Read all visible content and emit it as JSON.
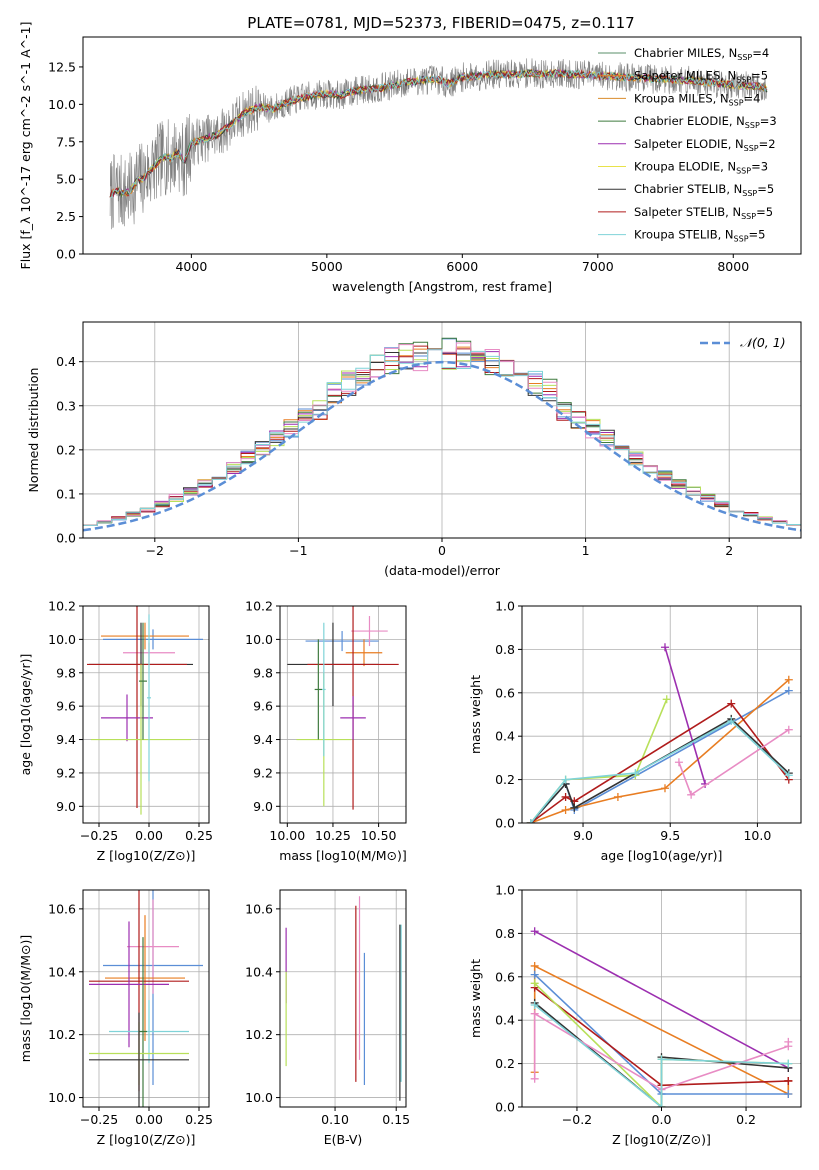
{
  "figure": {
    "title": "PLATE=0781, MJD=52373, FIBERID=0475, z=0.117"
  },
  "models": [
    {
      "name": "Chabrier MILES",
      "nssp": "4",
      "color": "#5a8f6a"
    },
    {
      "name": "Salpeter MILES",
      "nssp": "5",
      "color": "#e87d22"
    },
    {
      "name": "Kroupa MILES",
      "nssp": "4",
      "color": "#d98c2b"
    },
    {
      "name": "Chabrier ELODIE",
      "nssp": "3",
      "color": "#3f7a3f"
    },
    {
      "name": "Salpeter ELODIE",
      "nssp": "2",
      "color": "#9c2fb0"
    },
    {
      "name": "Kroupa ELODIE",
      "nssp": "3",
      "color": "#e8e24a"
    },
    {
      "name": "Chabrier STELIB",
      "nssp": "5",
      "color": "#333333"
    },
    {
      "name": "Salpeter STELIB",
      "nssp": "5",
      "color": "#b01c1c"
    },
    {
      "name": "Kroupa STELIB",
      "nssp": "5",
      "color": "#7fd3d8"
    }
  ],
  "chart_data": [
    {
      "id": "spectrum",
      "type": "line",
      "xlabel": "wavelength [Angstrom, rest frame]",
      "ylabel": "Flux [f_λ 10^-17 erg cm^-2 s^-1 A^-1]",
      "xlim": [
        3200,
        8500
      ],
      "ylim": [
        0,
        14.5
      ],
      "xticks": [
        4000,
        5000,
        6000,
        7000,
        8000
      ],
      "yticks": [
        0.0,
        2.5,
        5.0,
        7.5,
        10.0,
        12.5
      ],
      "legend": "right",
      "data_color": "#808080",
      "data_points": [
        [
          3400,
          3.9
        ],
        [
          3450,
          4.3
        ],
        [
          3500,
          4.0
        ],
        [
          3550,
          4.2
        ],
        [
          3600,
          4.9
        ],
        [
          3650,
          5.1
        ],
        [
          3700,
          5.6
        ],
        [
          3750,
          6.1
        ],
        [
          3800,
          6.5
        ],
        [
          3850,
          6.4
        ],
        [
          3900,
          6.8
        ],
        [
          3950,
          6.2
        ],
        [
          4000,
          7.4
        ],
        [
          4100,
          7.7
        ],
        [
          4200,
          8.0
        ],
        [
          4300,
          8.7
        ],
        [
          4400,
          9.5
        ],
        [
          4500,
          9.8
        ],
        [
          4600,
          9.7
        ],
        [
          4700,
          10.1
        ],
        [
          4800,
          10.4
        ],
        [
          4900,
          10.6
        ],
        [
          5000,
          10.7
        ],
        [
          5100,
          10.6
        ],
        [
          5200,
          10.9
        ],
        [
          5300,
          11.0
        ],
        [
          5400,
          11.1
        ],
        [
          5500,
          11.3
        ],
        [
          5600,
          11.5
        ],
        [
          5700,
          11.6
        ],
        [
          5800,
          11.7
        ],
        [
          5900,
          11.4
        ],
        [
          6000,
          11.8
        ],
        [
          6100,
          11.9
        ],
        [
          6200,
          12.0
        ],
        [
          6300,
          12.0
        ],
        [
          6400,
          12.0
        ],
        [
          6500,
          12.1
        ],
        [
          6600,
          12.0
        ],
        [
          6700,
          12.1
        ],
        [
          6800,
          12.0
        ],
        [
          6900,
          12.0
        ],
        [
          7000,
          11.9
        ],
        [
          7100,
          11.9
        ],
        [
          7200,
          11.8
        ],
        [
          7300,
          11.8
        ],
        [
          7400,
          11.7
        ],
        [
          7500,
          11.7
        ],
        [
          7600,
          11.6
        ],
        [
          7700,
          11.6
        ],
        [
          7800,
          11.5
        ],
        [
          7900,
          11.4
        ],
        [
          8000,
          11.3
        ],
        [
          8100,
          11.2
        ],
        [
          8200,
          11.2
        ],
        [
          8250,
          11.0
        ]
      ]
    },
    {
      "id": "residuals",
      "type": "bar",
      "xlabel": "(data-model)/error",
      "ylabel": "Normed distribution",
      "xlim": [
        -2.5,
        2.5
      ],
      "ylim": [
        0,
        0.49
      ],
      "xticks": [
        -2,
        -1,
        0,
        1,
        2
      ],
      "xticklabels": [
        "−2",
        "−1",
        "0",
        "1",
        "2"
      ],
      "yticks": [
        0.0,
        0.1,
        0.2,
        0.3,
        0.4
      ],
      "legend": "top-right",
      "normal_label": "𝒩(0, 1)",
      "normal_color": "#5b8ed6",
      "bin_width": 0.1,
      "bin_start": -2.5,
      "histogram_colors": [
        "#5b8ed6",
        "#e87d22",
        "#3f7a3f",
        "#9c2fb0",
        "#b8e05a",
        "#333333",
        "#b01c1c",
        "#e88cc4",
        "#7fd3d8"
      ]
    },
    {
      "id": "age-vs-Z",
      "type": "scatter",
      "xlabel": "Z [log10(Z/Z⊙)]",
      "ylabel": "age  [log10(age/yr)]",
      "xlim": [
        -0.33,
        0.3
      ],
      "ylim": [
        8.9,
        10.2
      ],
      "xticks": [
        -0.25,
        0.0,
        0.25
      ],
      "xticklabels": [
        "−0.25",
        "0.00",
        "0.25"
      ],
      "yticks": [
        9.0,
        9.2,
        9.4,
        9.6,
        9.8,
        10.0,
        10.2
      ],
      "points": [
        {
          "x": 0.02,
          "xerr": 0.25,
          "y": 10.0,
          "yerr": 0.06,
          "color": "#5b8ed6"
        },
        {
          "x": -0.02,
          "xerr": 0.22,
          "y": 10.02,
          "yerr": 0.08,
          "color": "#e87d22"
        },
        {
          "x": 0.0,
          "xerr": 0.13,
          "y": 9.92,
          "yerr": 0.06,
          "color": "#e88cc4"
        },
        {
          "x": -0.04,
          "xerr": 0.26,
          "y": 9.85,
          "yerr": 0.25,
          "color": "#333333"
        },
        {
          "x": -0.06,
          "xerr": 0.25,
          "y": 9.85,
          "yerr": 0.86,
          "color": "#b01c1c"
        },
        {
          "x": -0.11,
          "xerr": 0.13,
          "y": 9.53,
          "yerr": 0.14,
          "color": "#9c2fb0"
        },
        {
          "x": -0.04,
          "xerr": 0.25,
          "y": 9.4,
          "yerr": 0.45,
          "color": "#b8e05a"
        },
        {
          "x": -0.03,
          "xerr": 0.02,
          "y": 9.75,
          "yerr": 0.35,
          "color": "#3f7a3f"
        },
        {
          "x": 0.0,
          "xerr": 0.01,
          "y": 9.65,
          "yerr": 0.5,
          "color": "#7fd3d8"
        }
      ]
    },
    {
      "id": "age-vs-mass",
      "type": "scatter",
      "xlabel": "mass [log10(M/M⊙)]",
      "ylabel": "",
      "xlim": [
        9.96,
        10.65
      ],
      "ylim": [
        8.9,
        10.2
      ],
      "xticks": [
        10.0,
        10.25,
        10.5
      ],
      "xticklabels": [
        "10.00",
        "10.25",
        "10.50"
      ],
      "yticks": [
        9.0,
        9.2,
        9.4,
        9.6,
        9.8,
        10.0,
        10.2
      ],
      "points": [
        {
          "x": 10.3,
          "xerr": 0.2,
          "y": 9.99,
          "yerr": 0.06,
          "color": "#5b8ed6"
        },
        {
          "x": 10.45,
          "xerr": 0.1,
          "y": 10.05,
          "yerr": 0.09,
          "color": "#e88cc4"
        },
        {
          "x": 10.42,
          "xerr": 0.1,
          "y": 9.92,
          "yerr": 0.08,
          "color": "#e87d22"
        },
        {
          "x": 10.25,
          "xerr": 0.25,
          "y": 9.85,
          "yerr": 0.25,
          "color": "#333333"
        },
        {
          "x": 10.36,
          "xerr": 0.25,
          "y": 9.85,
          "yerr": 0.87,
          "color": "#b01c1c"
        },
        {
          "x": 10.36,
          "xerr": 0.07,
          "y": 9.53,
          "yerr": 0.13,
          "color": "#9c2fb0"
        },
        {
          "x": 10.2,
          "xerr": 0.15,
          "y": 9.4,
          "yerr": 0.4,
          "color": "#b8e05a"
        },
        {
          "x": 10.17,
          "xerr": 0.02,
          "y": 9.7,
          "yerr": 0.3,
          "color": "#3f7a3f"
        },
        {
          "x": 10.2,
          "xerr": 0.01,
          "y": 9.7,
          "yerr": 0.4,
          "color": "#7fd3d8"
        }
      ]
    },
    {
      "id": "weight-vs-age",
      "type": "line",
      "xlabel": "age  [log10(age/yr)]",
      "ylabel": "mass weight",
      "xlim": [
        8.65,
        10.25
      ],
      "ylim": [
        0,
        1
      ],
      "xticks": [
        9.0,
        9.5,
        10.0
      ],
      "xticklabels": [
        "9.0",
        "9.5",
        "10.0"
      ],
      "yticks": [
        0.0,
        0.2,
        0.4,
        0.6,
        0.8,
        1.0
      ],
      "yticklabels": [
        "0.0",
        "0.2",
        "0.4",
        "0.6",
        "0.8",
        "1.0"
      ],
      "series": [
        {
          "color": "#5b8ed6",
          "x": [
            8.7,
            8.9,
            8.95,
            10.18
          ],
          "y": [
            0.0,
            0.18,
            0.06,
            0.61
          ]
        },
        {
          "color": "#e87d22",
          "x": [
            8.7,
            8.9,
            9.2,
            9.47,
            10.18
          ],
          "y": [
            0.0,
            0.06,
            0.12,
            0.16,
            0.66
          ]
        },
        {
          "color": "#9c2fb0",
          "x": [
            9.47,
            9.7
          ],
          "y": [
            0.81,
            0.18
          ]
        },
        {
          "color": "#b8e05a",
          "x": [
            8.7,
            8.9,
            9.3,
            9.48
          ],
          "y": [
            0.0,
            0.2,
            0.22,
            0.57
          ]
        },
        {
          "color": "#b01c1c",
          "x": [
            8.7,
            8.9,
            8.95,
            9.85,
            10.18
          ],
          "y": [
            0.0,
            0.12,
            0.1,
            0.55,
            0.2
          ]
        },
        {
          "color": "#333333",
          "x": [
            8.7,
            8.9,
            8.95,
            9.85,
            10.18
          ],
          "y": [
            0.0,
            0.18,
            0.07,
            0.48,
            0.23
          ]
        },
        {
          "color": "#e88cc4",
          "x": [
            9.55,
            9.62,
            10.18
          ],
          "y": [
            0.28,
            0.13,
            0.43
          ]
        },
        {
          "color": "#7fd3d8",
          "x": [
            8.7,
            8.9,
            9.3,
            9.85,
            10.18
          ],
          "y": [
            0.0,
            0.2,
            0.23,
            0.47,
            0.22
          ]
        }
      ]
    },
    {
      "id": "mass-vs-Z",
      "type": "scatter",
      "xlabel": "Z [log10(Z/Z⊙)]",
      "ylabel": "mass [log10(M/M⊙)]",
      "xlim": [
        -0.33,
        0.3
      ],
      "ylim": [
        9.97,
        10.66
      ],
      "xticks": [
        -0.25,
        0.0,
        0.25
      ],
      "xticklabels": [
        "−0.25",
        "0.00",
        "0.25"
      ],
      "yticks": [
        10.0,
        10.2,
        10.4,
        10.6
      ],
      "yticklabels": [
        "10.0",
        "10.2",
        "10.4",
        "10.6"
      ],
      "points": [
        {
          "x": 0.02,
          "xerr": 0.25,
          "y": 10.42,
          "yerr": 0.38,
          "color": "#5b8ed6"
        },
        {
          "x": 0.02,
          "xerr": 0.13,
          "y": 10.48,
          "yerr": 0.15,
          "color": "#e88cc4"
        },
        {
          "x": -0.02,
          "xerr": 0.2,
          "y": 10.38,
          "yerr": 0.2,
          "color": "#e87d22"
        },
        {
          "x": -0.05,
          "xerr": 0.25,
          "y": 10.37,
          "yerr": 0.35,
          "color": "#b01c1c"
        },
        {
          "x": -0.1,
          "xerr": 0.2,
          "y": 10.36,
          "yerr": 0.2,
          "color": "#9c2fb0"
        },
        {
          "x": 0.0,
          "xerr": 0.2,
          "y": 10.21,
          "yerr": 0.1,
          "color": "#7fd3d8"
        },
        {
          "x": -0.03,
          "xerr": 0.02,
          "y": 10.21,
          "yerr": 0.3,
          "color": "#3f7a3f"
        },
        {
          "x": -0.05,
          "xerr": 0.25,
          "y": 10.14,
          "yerr": 0.1,
          "color": "#b8e05a"
        },
        {
          "x": -0.05,
          "xerr": 0.25,
          "y": 10.12,
          "yerr": 0.15,
          "color": "#333333"
        }
      ]
    },
    {
      "id": "mass-vs-ebv",
      "type": "scatter",
      "xlabel": "E(B-V)",
      "ylabel": "",
      "xlim": [
        0.055,
        0.158
      ],
      "ylim": [
        9.97,
        10.66
      ],
      "xticks": [
        0.1,
        0.15
      ],
      "xticklabels": [
        "0.10",
        "0.15"
      ],
      "yticks": [
        10.0,
        10.2,
        10.4,
        10.6
      ],
      "yticklabels": [
        "10.0",
        "10.2",
        "10.4",
        "10.6"
      ],
      "points": [
        {
          "x": 0.06,
          "xerr": 0,
          "y": 10.42,
          "yerr": 0.12,
          "color": "#9c2fb0"
        },
        {
          "x": 0.06,
          "xerr": 0,
          "y": 10.25,
          "yerr": 0.15,
          "color": "#b8e05a"
        },
        {
          "x": 0.117,
          "xerr": 0,
          "y": 10.33,
          "yerr": 0.28,
          "color": "#b01c1c"
        },
        {
          "x": 0.12,
          "xerr": 0,
          "y": 10.38,
          "yerr": 0.26,
          "color": "#e88cc4"
        },
        {
          "x": 0.124,
          "xerr": 0,
          "y": 10.25,
          "yerr": 0.21,
          "color": "#5b8ed6"
        },
        {
          "x": 0.153,
          "xerr": 0,
          "y": 10.27,
          "yerr": 0.28,
          "color": "#333333"
        },
        {
          "x": 0.154,
          "xerr": 0,
          "y": 10.3,
          "yerr": 0.25,
          "color": "#7fd3d8"
        }
      ]
    },
    {
      "id": "weight-vs-Z",
      "type": "line",
      "xlabel": "Z [log10(Z/Z⊙)]",
      "ylabel": "mass weight",
      "xlim": [
        -0.33,
        0.33
      ],
      "ylim": [
        0,
        1
      ],
      "xticks": [
        -0.2,
        0.0,
        0.2
      ],
      "xticklabels": [
        "−0.2",
        "0.0",
        "0.2"
      ],
      "yticks": [
        0.0,
        0.2,
        0.4,
        0.6,
        0.8,
        1.0
      ],
      "yticklabels": [
        "0.0",
        "0.2",
        "0.4",
        "0.6",
        "0.8",
        "1.0"
      ],
      "series": [
        {
          "color": "#9c2fb0",
          "x": [
            -0.3,
            0.3
          ],
          "y": [
            0.81,
            0.18
          ]
        },
        {
          "color": "#e87d22",
          "x": [
            -0.3,
            -0.3,
            0.3,
            0.3
          ],
          "y": [
            0.16,
            0.65,
            0.06,
            0.12
          ]
        },
        {
          "color": "#5b8ed6",
          "x": [
            -0.3,
            0.0,
            0.0,
            0.3
          ],
          "y": [
            0.61,
            0.06,
            0.06,
            0.06
          ]
        },
        {
          "color": "#333333",
          "x": [
            -0.3,
            0.0,
            0.0,
            0.3
          ],
          "y": [
            0.48,
            0.0,
            0.23,
            0.18
          ]
        },
        {
          "color": "#b01c1c",
          "x": [
            -0.3,
            0.0,
            0.3,
            0.3
          ],
          "y": [
            0.55,
            0.1,
            0.12,
            0.12
          ]
        },
        {
          "color": "#b8e05a",
          "x": [
            -0.3,
            0.0,
            0.0,
            0.3
          ],
          "y": [
            0.57,
            0.0,
            0.22,
            0.2
          ]
        },
        {
          "color": "#e88cc4",
          "x": [
            -0.3,
            -0.3,
            0.0,
            0.3,
            0.3
          ],
          "y": [
            0.13,
            0.43,
            0.08,
            0.28,
            0.3
          ]
        },
        {
          "color": "#7fd3d8",
          "x": [
            -0.3,
            0.0,
            0.0,
            0.3
          ],
          "y": [
            0.47,
            0.0,
            0.22,
            0.2
          ]
        }
      ]
    }
  ]
}
